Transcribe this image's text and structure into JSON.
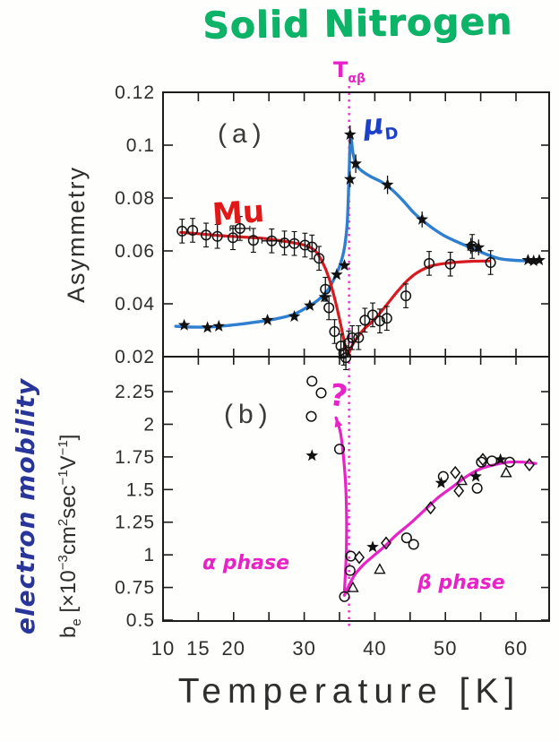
{
  "title": "Solid Nitrogen",
  "x_axis": {
    "label": "Temperature  [K]",
    "ticks": [
      [
        10,
        "10"
      ],
      [
        15,
        "15"
      ],
      [
        20,
        "20"
      ],
      [
        30,
        "30"
      ],
      [
        40,
        "40"
      ],
      [
        50,
        "50"
      ],
      [
        60,
        "60"
      ]
    ],
    "minor": [
      15,
      20,
      25,
      30,
      35,
      40,
      45,
      50,
      55,
      60
    ],
    "range": [
      10,
      64.6
    ]
  },
  "colors": {
    "mu_red": "#d51a20",
    "mud_blue": "#2f7fd0",
    "mud_label_blue": "#1d40c8",
    "magenta": "#e722c7",
    "title_green": "#0cb468",
    "handwritten_navy": "#28359b",
    "ink": "#1c1c1c"
  },
  "chart_data": [
    {
      "type": "line",
      "panel_label": "(a)",
      "ylabel": "Asymmetry",
      "ylim": [
        0.02,
        0.12
      ],
      "yticks": [
        [
          0.12,
          "0.12"
        ],
        [
          0.1,
          "0.1"
        ],
        [
          0.08,
          "0.08"
        ],
        [
          0.06,
          "0.06"
        ],
        [
          0.04,
          "0.04"
        ],
        [
          0.02,
          "0.02"
        ]
      ],
      "vline": {
        "x": 36.35,
        "label_main": "T",
        "label_sub": "αβ",
        "color": "#e722c7"
      },
      "series": [
        {
          "name": "Mu",
          "color": "#d51a20",
          "marker": "circle-open",
          "yerr": 0.0045,
          "curve": [
            [
              12.5,
              0.067
            ],
            [
              15,
              0.0665
            ],
            [
              18,
              0.0658
            ],
            [
              21,
              0.0653
            ],
            [
              24,
              0.0648
            ],
            [
              26,
              0.0641
            ],
            [
              28,
              0.0633
            ],
            [
              30,
              0.0622
            ],
            [
              31.5,
              0.0602
            ],
            [
              32.5,
              0.0562
            ],
            [
              33.5,
              0.0498
            ],
            [
              34.5,
              0.04
            ],
            [
              35.3,
              0.0305
            ],
            [
              35.9,
              0.0228
            ],
            [
              36.2,
              0.0205
            ],
            [
              36.7,
              0.0238
            ],
            [
              37.5,
              0.0272
            ],
            [
              38.5,
              0.0305
            ],
            [
              40,
              0.0342
            ],
            [
              41.5,
              0.039
            ],
            [
              43,
              0.044
            ],
            [
              44.5,
              0.0485
            ],
            [
              46,
              0.0518
            ],
            [
              48,
              0.0543
            ],
            [
              50,
              0.0553
            ],
            [
              52,
              0.0558
            ],
            [
              54,
              0.0561
            ],
            [
              56.2,
              0.0562
            ]
          ],
          "points": [
            [
              12.7,
              0.0675
            ],
            [
              14.2,
              0.0678
            ],
            [
              16.1,
              0.066
            ],
            [
              17.7,
              0.0655
            ],
            [
              19.9,
              0.065
            ],
            [
              20.9,
              0.0685,
              "h"
            ],
            [
              22.8,
              0.064
            ],
            [
              25.4,
              0.0638,
              "h"
            ],
            [
              27.2,
              0.063
            ],
            [
              28.6,
              0.0628
            ],
            [
              30.1,
              0.0622
            ],
            [
              31.1,
              0.0615
            ],
            [
              32.1,
              0.0572
            ],
            [
              33,
              0.0455
            ],
            [
              33.5,
              0.0385
            ],
            [
              34.3,
              0.0295
            ],
            [
              35.2,
              0.024
            ],
            [
              35.6,
              0.0213
            ],
            [
              35.9,
              0.0196
            ],
            [
              36.3,
              0.0252
            ],
            [
              36.8,
              0.0272
            ],
            [
              37.7,
              0.0272
            ],
            [
              38.6,
              0.0338
            ],
            [
              39.7,
              0.0358
            ],
            [
              40.7,
              0.0335
            ],
            [
              41.7,
              0.0345
            ],
            [
              44.4,
              0.043
            ],
            [
              47.7,
              0.0553
            ],
            [
              50.7,
              0.055
            ],
            [
              53.8,
              0.0617
            ],
            [
              56.4,
              0.0556
            ]
          ]
        },
        {
          "name": "μD",
          "name_main": "μ",
          "name_sub": "D",
          "color": "#2f7fd0",
          "marker": "star-filled",
          "curve": [
            [
              11.8,
              0.0315
            ],
            [
              14,
              0.0312
            ],
            [
              17,
              0.0313
            ],
            [
              20,
              0.032
            ],
            [
              23,
              0.033
            ],
            [
              26,
              0.0343
            ],
            [
              28.5,
              0.036
            ],
            [
              30.5,
              0.0388
            ],
            [
              32,
              0.0415
            ],
            [
              33.3,
              0.045
            ],
            [
              34.3,
              0.0498
            ],
            [
              35.1,
              0.0548
            ],
            [
              35.7,
              0.0612
            ],
            [
              36.1,
              0.071
            ],
            [
              36.35,
              0.088
            ],
            [
              36.55,
              0.1035
            ],
            [
              36.9,
              0.097
            ],
            [
              37.4,
              0.0925
            ],
            [
              38.2,
              0.0902
            ],
            [
              39.5,
              0.088
            ],
            [
              41,
              0.086
            ],
            [
              42.5,
              0.083
            ],
            [
              44,
              0.079
            ],
            [
              45.5,
              0.0745
            ],
            [
              47,
              0.071
            ],
            [
              48.5,
              0.068
            ],
            [
              50,
              0.0655
            ],
            [
              52,
              0.063
            ],
            [
              54,
              0.0608
            ],
            [
              56,
              0.0585
            ],
            [
              57.5,
              0.0572
            ],
            [
              59,
              0.0566
            ],
            [
              61,
              0.0563
            ],
            [
              63.5,
              0.0565
            ]
          ],
          "points": [
            [
              13,
              0.0319
            ],
            [
              16.3,
              0.031
            ],
            [
              17.9,
              0.0315
            ],
            [
              24.8,
              0.0338
            ],
            [
              28.6,
              0.0352
            ],
            [
              30.8,
              0.0393
            ],
            [
              32.9,
              0.0425
            ],
            [
              34.6,
              0.051
            ],
            [
              35.7,
              0.0545
            ],
            [
              36.5,
              0.104,
              0.0035
            ],
            [
              36.5,
              0.0871,
              0.003
            ],
            [
              37.3,
              0.093,
              0.0035
            ],
            [
              41.8,
              0.085,
              0.0035
            ],
            [
              46.7,
              0.0719,
              0.003
            ],
            [
              53.6,
              0.0619,
              0.003
            ],
            [
              54.7,
              0.0613,
              0.003
            ],
            [
              61.7,
              0.0565
            ],
            [
              62.5,
              0.0562
            ],
            [
              63.3,
              0.0565
            ]
          ]
        }
      ]
    },
    {
      "type": "scatter",
      "panel_label": "(b)",
      "ylabel_name": "electron mobility",
      "ylabel_unit": {
        "b": "b",
        "b_sub": "e",
        "u1": " [×10",
        "s1": "−3",
        "u2": "cm",
        "s2": "2",
        "u3": "sec",
        "s3": "−1",
        "u4": "V",
        "s4": "−1",
        "u5": "]"
      },
      "ylim": [
        0.45,
        2.53
      ],
      "yticks": [
        [
          2.25,
          "2.25"
        ],
        [
          2,
          "2"
        ],
        [
          1.75,
          "1.75"
        ],
        [
          1.5,
          "1.5"
        ],
        [
          1.25,
          "1.25"
        ],
        [
          1,
          "1"
        ],
        [
          0.75,
          "0.75"
        ],
        [
          0.5,
          "0.5"
        ]
      ],
      "fit_color": "#e722c7",
      "beta_curve": [
        [
          35.7,
          0.69
        ],
        [
          36.3,
          0.76
        ],
        [
          37.2,
          0.85
        ],
        [
          38.5,
          0.93
        ],
        [
          40,
          1.0
        ],
        [
          41.5,
          1.07
        ],
        [
          43,
          1.15
        ],
        [
          45,
          1.24
        ],
        [
          47,
          1.34
        ],
        [
          49,
          1.44
        ],
        [
          51,
          1.52
        ],
        [
          53,
          1.6
        ],
        [
          55,
          1.66
        ],
        [
          57,
          1.69
        ],
        [
          59,
          1.71
        ],
        [
          61,
          1.71
        ],
        [
          62.8,
          1.7
        ]
      ],
      "alpha_arrow": [
        [
          35.7,
          0.72
        ],
        [
          35.95,
          1.0
        ],
        [
          36,
          1.25
        ],
        [
          35.9,
          1.5
        ],
        [
          35.6,
          1.73
        ],
        [
          35.15,
          1.93
        ],
        [
          34.5,
          2.05
        ]
      ],
      "series": [
        {
          "marker": "circle-open",
          "points": [
            [
              31.1,
              2.33
            ],
            [
              32.4,
              2.24
            ],
            [
              31,
              2.06
            ],
            [
              35,
              1.81
            ],
            [
              35.7,
              0.68
            ],
            [
              36.5,
              0.88
            ],
            [
              36.6,
              0.99
            ],
            [
              44.5,
              1.13
            ],
            [
              45.5,
              1.08
            ],
            [
              49.7,
              1.6
            ],
            [
              54.5,
              1.51
            ],
            [
              55.1,
              1.71
            ],
            [
              56.6,
              1.72
            ],
            [
              59.1,
              1.71
            ]
          ]
        },
        {
          "marker": "star-filled",
          "points": [
            [
              31.1,
              1.76
            ],
            [
              39.7,
              1.06
            ],
            [
              49.4,
              1.55
            ],
            [
              54.3,
              1.6
            ],
            [
              57.8,
              1.73
            ]
          ]
        },
        {
          "marker": "diamond-open",
          "points": [
            [
              37.8,
              0.98
            ],
            [
              41.6,
              1.09
            ],
            [
              47.9,
              1.36
            ],
            [
              51.4,
              1.63
            ],
            [
              51.9,
              1.49
            ],
            [
              55.3,
              1.73
            ],
            [
              61.9,
              1.69
            ]
          ]
        },
        {
          "marker": "triangle-open",
          "points": [
            [
              36.9,
              0.75
            ],
            [
              40.7,
              0.89
            ],
            [
              52.3,
              1.57
            ],
            [
              58.6,
              1.63
            ]
          ]
        }
      ],
      "annotations": {
        "alpha_phase": "α phase",
        "beta_phase": "β phase",
        "question": "?"
      }
    }
  ]
}
